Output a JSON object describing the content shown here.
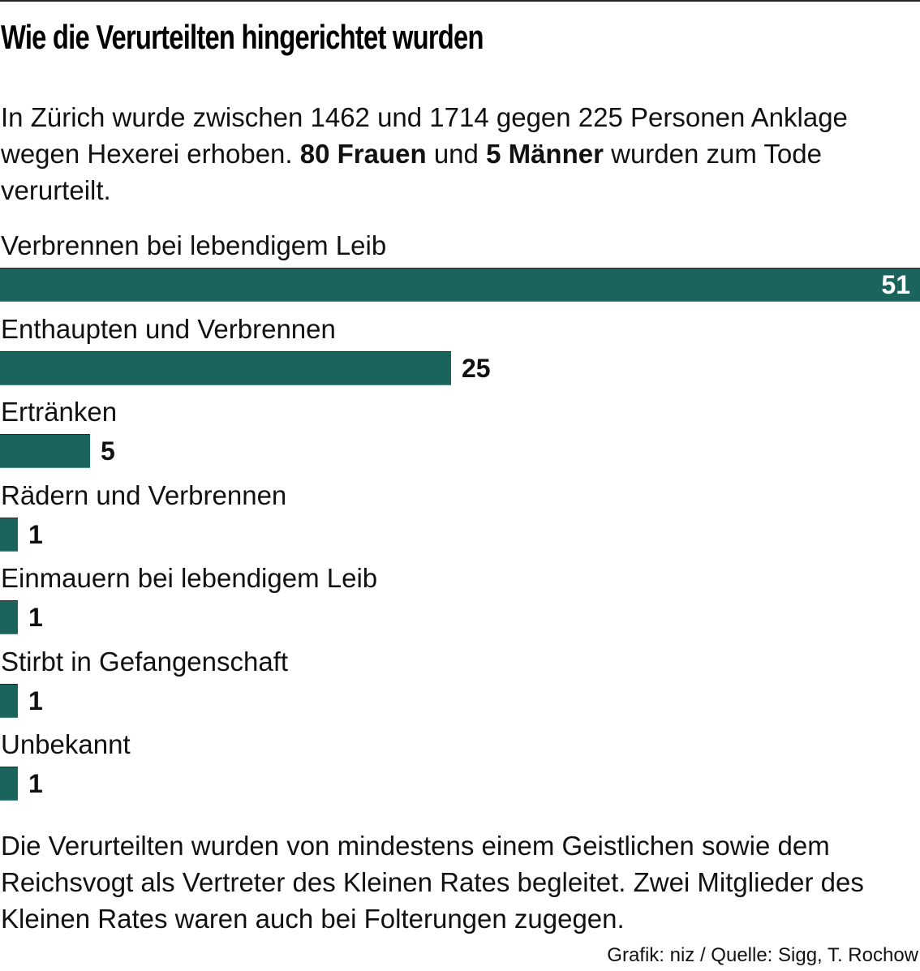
{
  "title": "Wie die Verurteilten hingerichtet wurden",
  "intro": {
    "part1": "In Zürich wurde zwischen 1462 und 1714 gegen 225 Personen Anklage wegen Hexerei erhoben. ",
    "bold1": "80 Frauen",
    "part2": " und ",
    "bold2": "5 Männer",
    "part3": " wurden zum Tode verurteilt."
  },
  "outro": "Die Verurteilten wurden von mindestens einem Geistlichen sowie dem Reichsvogt als Vertreter des Kleinen Rates begleitet. Zwei Mitglieder des Kleinen Rates waren auch bei Folterungen zugegen.",
  "credit": "Grafik: niz / Quelle: Sigg, T. Rochow",
  "colors": {
    "bar": "#1a645c",
    "label_inside": "#ffffff",
    "text": "#111111"
  },
  "chart_data": {
    "type": "bar",
    "orientation": "horizontal",
    "title": "Wie die Verurteilten hingerichtet wurden",
    "xlabel": "",
    "ylabel": "",
    "categories": [
      "Verbrennen bei lebendigem Leib",
      "Enthaupten und Verbrennen",
      "Ertränken",
      "Rädern und Verbrennen",
      "Einmauern bei lebendigem Leib",
      "Stirbt in Gefangenschaft",
      "Unbekannt"
    ],
    "values": [
      51,
      25,
      5,
      1,
      1,
      1,
      1
    ],
    "xlim": [
      0,
      51
    ],
    "grid": false,
    "legend": "none",
    "data_labels": true
  }
}
